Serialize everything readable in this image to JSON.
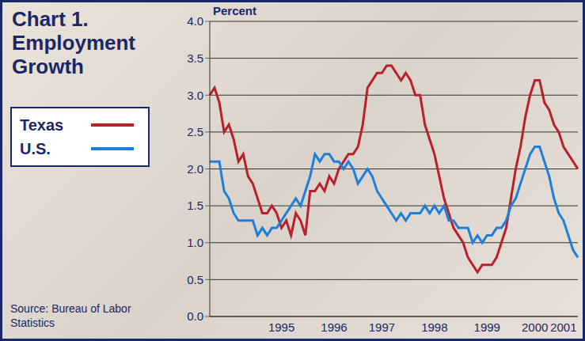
{
  "chart_data": {
    "type": "line",
    "title": "Chart 1. Employment Growth",
    "y_label": "Percent",
    "source": "Source: Bureau of Labor Statistics",
    "categories": [
      null,
      null,
      null,
      null,
      null,
      null,
      null,
      null,
      null,
      null,
      null,
      null,
      null,
      null,
      null,
      "1995",
      null,
      null,
      null,
      null,
      null,
      null,
      null,
      null,
      null,
      null,
      "1996",
      null,
      null,
      null,
      null,
      null,
      null,
      null,
      null,
      null,
      "1997",
      null,
      null,
      null,
      null,
      null,
      null,
      null,
      null,
      null,
      null,
      "1998",
      null,
      null,
      null,
      null,
      null,
      null,
      null,
      null,
      null,
      null,
      "1999",
      null,
      null,
      null,
      null,
      null,
      null,
      null,
      null,
      null,
      "2000",
      null,
      null,
      null,
      null,
      null,
      "2001",
      null,
      null,
      null
    ],
    "series": [
      {
        "name": "Texas",
        "color": "#b8202a",
        "values": [
          3.0,
          3.1,
          2.9,
          2.5,
          2.6,
          2.4,
          2.1,
          2.2,
          1.9,
          1.8,
          1.6,
          1.4,
          1.4,
          1.5,
          1.4,
          1.2,
          1.3,
          1.1,
          1.4,
          1.3,
          1.1,
          1.7,
          1.7,
          1.8,
          1.7,
          1.9,
          1.8,
          2.0,
          2.1,
          2.2,
          2.2,
          2.3,
          2.6,
          3.1,
          3.2,
          3.3,
          3.3,
          3.4,
          3.4,
          3.3,
          3.2,
          3.3,
          3.2,
          3.0,
          3.0,
          2.6,
          2.4,
          2.2,
          1.9,
          1.6,
          1.4,
          1.2,
          1.1,
          1.0,
          0.8,
          0.7,
          0.6,
          0.7,
          0.7,
          0.7,
          0.8,
          1.0,
          1.2,
          1.6,
          2.0,
          2.3,
          2.7,
          3.0,
          3.2,
          3.2,
          2.9,
          2.8,
          2.6,
          2.5,
          2.3,
          2.2,
          2.1,
          2.0
        ]
      },
      {
        "name": "U.S.",
        "color": "#1f7fd8",
        "values": [
          2.1,
          2.1,
          2.1,
          1.7,
          1.6,
          1.4,
          1.3,
          1.3,
          1.3,
          1.3,
          1.1,
          1.2,
          1.1,
          1.2,
          1.2,
          1.3,
          1.4,
          1.5,
          1.6,
          1.5,
          1.7,
          1.9,
          2.2,
          2.1,
          2.2,
          2.2,
          2.1,
          2.1,
          2.0,
          2.1,
          2.0,
          1.8,
          1.9,
          2.0,
          1.9,
          1.7,
          1.6,
          1.5,
          1.4,
          1.3,
          1.4,
          1.3,
          1.4,
          1.4,
          1.4,
          1.5,
          1.4,
          1.5,
          1.4,
          1.5,
          1.3,
          1.3,
          1.2,
          1.2,
          1.2,
          1.0,
          1.1,
          1.0,
          1.1,
          1.1,
          1.2,
          1.2,
          1.3,
          1.5,
          1.6,
          1.8,
          2.0,
          2.2,
          2.3,
          2.3,
          2.1,
          1.9,
          1.6,
          1.4,
          1.3,
          1.1,
          0.9,
          0.8
        ]
      }
    ],
    "ylim": [
      0,
      4
    ],
    "yticks": [
      {
        "value": 0,
        "label": "0.0"
      },
      0.5,
      {
        "value": 1,
        "label": "1.0"
      },
      1.5,
      {
        "value": 2,
        "label": "2.0"
      },
      2.5,
      {
        "value": 3,
        "label": "3.0"
      },
      3.5,
      {
        "value": 4,
        "label": "4.0"
      }
    ],
    "grid": true,
    "legend": "left"
  }
}
